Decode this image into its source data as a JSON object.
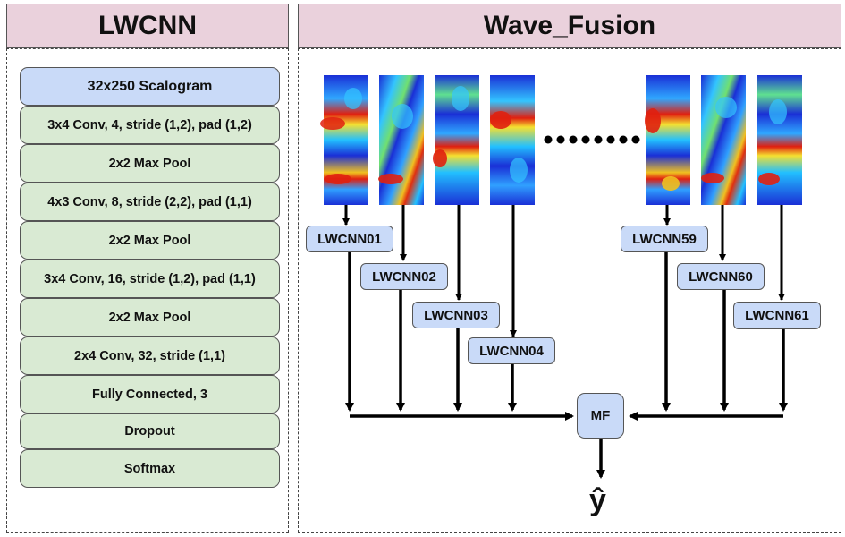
{
  "left_panel": {
    "title": "LWCNN",
    "layers": [
      "32x250 Scalogram",
      "3x4 Conv, 4, stride (1,2), pad (1,2)",
      "2x2 Max Pool",
      "4x3 Conv, 8, stride (2,2), pad (1,1)",
      "2x2 Max Pool",
      "3x4 Conv, 16, stride (1,2), pad (1,1)",
      "2x2 Max Pool",
      "2x4 Conv, 32, stride (1,1)",
      "Fully Connected, 3",
      "Dropout",
      "Softmax"
    ]
  },
  "right_panel": {
    "title": "Wave_Fusion",
    "nodes": [
      "LWCNN01",
      "LWCNN02",
      "LWCNN03",
      "LWCNN04",
      "LWCNN59",
      "LWCNN60",
      "LWCNN61"
    ],
    "fusion_label": "MF",
    "output_label": "ŷ"
  },
  "colors": {
    "title_bg": "#ead1dc",
    "layer_bg": "#d9ead3",
    "input_bg": "#c9daf8",
    "node_bg": "#c9daf8"
  }
}
